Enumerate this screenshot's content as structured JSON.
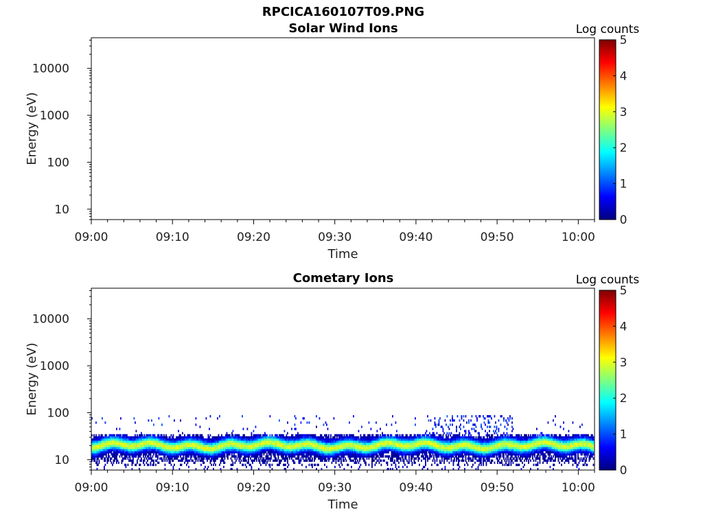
{
  "figure": {
    "title": "RPCICA160107T09.PNG"
  },
  "chart_data": [
    {
      "type": "heatmap",
      "title": "Solar Wind Ions",
      "xlabel": "Time",
      "ylabel": "Energy (eV)",
      "x_ticks": [
        "09:00",
        "09:10",
        "09:20",
        "09:30",
        "09:40",
        "09:50",
        "10:00"
      ],
      "y_ticks": [
        "10",
        "100",
        "1000",
        "10000"
      ],
      "y_scale": "log",
      "x_range": [
        "09:00",
        "10:02"
      ],
      "y_range_eV": [
        6,
        45000
      ],
      "colorbar": {
        "label": "Log counts",
        "ticks": [
          "0",
          "1",
          "2",
          "3",
          "4",
          "5"
        ],
        "range": [
          0,
          5
        ],
        "colormap": "jet"
      },
      "data_summary": "no counts (empty panel)"
    },
    {
      "type": "heatmap",
      "title": "Cometary Ions",
      "xlabel": "Time",
      "ylabel": "Energy (eV)",
      "x_ticks": [
        "09:00",
        "09:10",
        "09:20",
        "09:30",
        "09:40",
        "09:50",
        "10:00"
      ],
      "y_ticks": [
        "10",
        "100",
        "1000",
        "10000"
      ],
      "y_scale": "log",
      "x_range": [
        "09:00",
        "10:02"
      ],
      "y_range_eV": [
        6,
        45000
      ],
      "colorbar": {
        "label": "Log counts",
        "ticks": [
          "0",
          "1",
          "2",
          "3",
          "4",
          "5"
        ],
        "range": [
          0,
          5
        ],
        "colormap": "jet"
      },
      "band": {
        "center_energy_eV": 20,
        "core_energy_eV": [
          15,
          28
        ],
        "extent_energy_eV": [
          8,
          35
        ],
        "peak_log_counts": 3.0,
        "sporadic_high_energy_eV": [
          35,
          85
        ],
        "sporadic_high_energy_window": [
          "09:41",
          "09:52"
        ]
      }
    }
  ],
  "colors": {
    "jet_stops": [
      "#00007f",
      "#0000ff",
      "#007fff",
      "#00ffff",
      "#7fff7f",
      "#ffff00",
      "#ff7f00",
      "#ff0000",
      "#7f0000"
    ]
  }
}
